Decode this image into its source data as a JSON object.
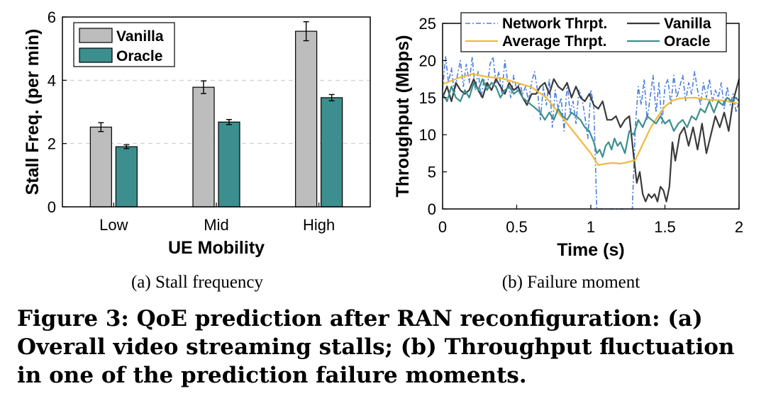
{
  "chart_data": [
    {
      "type": "bar",
      "caption": "(a)  Stall frequency",
      "xlabel": "UE Mobility",
      "ylabel": "Stall Freq. (per min)",
      "categories": [
        "Low",
        "Mid",
        "High"
      ],
      "ylim": [
        0,
        6
      ],
      "yticks": [
        0,
        2,
        4,
        6
      ],
      "grid": "dashed horizontal at 2 and 4",
      "legend_position": "top-left",
      "series": [
        {
          "name": "Vanilla",
          "color": "#bdbdbd",
          "values": [
            2.52,
            3.78,
            5.55
          ],
          "errors": [
            0.14,
            0.2,
            0.3
          ]
        },
        {
          "name": "Oracle",
          "color": "#3d8f8f",
          "values": [
            1.9,
            2.68,
            3.45
          ],
          "errors": [
            0.06,
            0.08,
            0.1
          ]
        }
      ]
    },
    {
      "type": "line",
      "caption": "(b)  Failure moment",
      "xlabel": "Time (s)",
      "ylabel": "Throughput (Mbps)",
      "xlim": [
        0,
        2
      ],
      "xticks": [
        0,
        0.5,
        1,
        1.5,
        2
      ],
      "ylim": [
        0,
        25
      ],
      "yticks": [
        0,
        5,
        10,
        15,
        20,
        25
      ],
      "legend_position": "top (2 columns)",
      "series": [
        {
          "name": "Network Thrpt.",
          "color": "#4a7de0",
          "style": "dash-dot",
          "x": [
            0,
            0.02,
            0.04,
            0.06,
            0.08,
            0.1,
            0.12,
            0.14,
            0.16,
            0.18,
            0.2,
            0.22,
            0.24,
            0.26,
            0.28,
            0.3,
            0.32,
            0.34,
            0.36,
            0.38,
            0.4,
            0.42,
            0.44,
            0.46,
            0.48,
            0.5,
            0.52,
            0.54,
            0.56,
            0.58,
            0.6,
            0.62,
            0.64,
            0.66,
            0.68,
            0.7,
            0.72,
            0.74,
            0.76,
            0.78,
            0.8,
            0.82,
            0.84,
            0.86,
            0.88,
            0.9,
            0.92,
            0.94,
            0.96,
            0.98,
            1,
            1.02,
            1.04,
            1.06,
            1.08,
            1.1,
            1.12,
            1.14,
            1.16,
            1.18,
            1.2,
            1.22,
            1.24,
            1.26,
            1.28,
            1.3,
            1.32,
            1.34,
            1.36,
            1.38,
            1.4,
            1.42,
            1.44,
            1.46,
            1.48,
            1.5,
            1.52,
            1.54,
            1.56,
            1.58,
            1.6,
            1.62,
            1.64,
            1.66,
            1.68,
            1.7,
            1.72,
            1.74,
            1.76,
            1.78,
            1.8,
            1.82,
            1.84,
            1.86,
            1.88,
            1.9,
            1.92,
            1.94,
            1.96,
            1.98,
            2
          ],
          "y": [
            16,
            20.5,
            17,
            19,
            15.5,
            18,
            20,
            16.5,
            19.5,
            17,
            20.5,
            16,
            18.5,
            15,
            17.5,
            16,
            19.5,
            20.5,
            17,
            18.5,
            15.5,
            20,
            17,
            15,
            18,
            16,
            17,
            15.5,
            16.5,
            14.5,
            17,
            18.5,
            16,
            12,
            16.5,
            14,
            17.5,
            11,
            16,
            13.5,
            15,
            10.5,
            17,
            13,
            14.5,
            11.5,
            16,
            15,
            12.5,
            9.5,
            16,
            14,
            0,
            0,
            0,
            0,
            0,
            0,
            0,
            0,
            0,
            0,
            0,
            0,
            0,
            11,
            16.5,
            14,
            17.5,
            12,
            15,
            18,
            13,
            17,
            11.5,
            16.5,
            17.5,
            14,
            18,
            15,
            16.5,
            18,
            14.5,
            17,
            15.5,
            18.5,
            16,
            14,
            17,
            15,
            17.5,
            14.5,
            16,
            15,
            17,
            13.5,
            16.5,
            14,
            15.5,
            13,
            14.5
          ]
        },
        {
          "name": "Vanilla",
          "color": "#3a3a3a",
          "style": "solid",
          "x": [
            0,
            0.03,
            0.06,
            0.09,
            0.12,
            0.15,
            0.18,
            0.21,
            0.24,
            0.27,
            0.3,
            0.33,
            0.36,
            0.39,
            0.42,
            0.45,
            0.48,
            0.51,
            0.54,
            0.57,
            0.6,
            0.63,
            0.66,
            0.69,
            0.72,
            0.75,
            0.78,
            0.81,
            0.84,
            0.87,
            0.9,
            0.93,
            0.96,
            0.99,
            1.02,
            1.05,
            1.08,
            1.11,
            1.14,
            1.17,
            1.2,
            1.23,
            1.26,
            1.29,
            1.31,
            1.33,
            1.35,
            1.37,
            1.39,
            1.41,
            1.43,
            1.45,
            1.47,
            1.49,
            1.51,
            1.53,
            1.55,
            1.57,
            1.6,
            1.63,
            1.66,
            1.69,
            1.72,
            1.75,
            1.78,
            1.81,
            1.84,
            1.87,
            1.9,
            1.93,
            1.96,
            2
          ],
          "y": [
            15,
            16.5,
            14.5,
            17,
            16,
            15.5,
            16,
            17.5,
            16,
            15,
            17,
            16,
            17.5,
            16.5,
            15.5,
            17,
            16,
            16.5,
            15,
            14,
            15.5,
            15.5,
            16.5,
            17,
            15.5,
            17.5,
            16.5,
            16,
            17,
            15,
            16.5,
            15,
            14.5,
            15.5,
            14,
            13.5,
            14.5,
            12,
            12,
            12.5,
            11,
            12,
            12.5,
            7,
            3.5,
            5,
            2,
            1,
            2,
            1.5,
            2,
            1,
            3,
            2.5,
            1,
            3,
            9,
            6.5,
            10,
            11,
            8.5,
            11,
            8,
            11.5,
            7.5,
            10,
            12.5,
            11,
            13,
            10.5,
            14.5,
            17.5
          ]
        },
        {
          "name": "Average Thrpt.",
          "color": "#f0b93a",
          "style": "solid",
          "x": [
            0,
            0.1,
            0.2,
            0.3,
            0.4,
            0.5,
            0.6,
            0.7,
            0.8,
            0.9,
            1,
            1.05,
            1.1,
            1.15,
            1.2,
            1.25,
            1.3,
            1.35,
            1.4,
            1.45,
            1.5,
            1.55,
            1.6,
            1.7,
            1.8,
            1.9,
            2
          ],
          "y": [
            16.8,
            17.6,
            18.2,
            17.8,
            17.6,
            17,
            16.4,
            15,
            12.5,
            10,
            7.5,
            5.9,
            6.1,
            6.2,
            6.1,
            6.3,
            6.6,
            8.7,
            10.8,
            12.4,
            13.8,
            14.6,
            14.9,
            15,
            14.7,
            14.6,
            14.2
          ]
        },
        {
          "name": "Oracle",
          "color": "#3d8f8f",
          "style": "solid",
          "x": [
            0,
            0.03,
            0.06,
            0.09,
            0.12,
            0.15,
            0.18,
            0.21,
            0.24,
            0.27,
            0.3,
            0.33,
            0.36,
            0.39,
            0.42,
            0.45,
            0.48,
            0.51,
            0.54,
            0.57,
            0.6,
            0.63,
            0.66,
            0.69,
            0.72,
            0.75,
            0.78,
            0.81,
            0.84,
            0.87,
            0.9,
            0.93,
            0.96,
            0.99,
            1.02,
            1.04,
            1.06,
            1.08,
            1.1,
            1.12,
            1.14,
            1.16,
            1.18,
            1.2,
            1.23,
            1.26,
            1.29,
            1.32,
            1.35,
            1.38,
            1.41,
            1.44,
            1.47,
            1.5,
            1.53,
            1.56,
            1.59,
            1.62,
            1.65,
            1.68,
            1.71,
            1.74,
            1.77,
            1.8,
            1.83,
            1.86,
            1.89,
            1.92,
            1.95,
            1.98,
            2
          ],
          "y": [
            15.5,
            14.5,
            16.5,
            15,
            14.5,
            16,
            15,
            17,
            16,
            17.5,
            16,
            17,
            16.5,
            15,
            16,
            16.5,
            15.5,
            16,
            15,
            14.5,
            14,
            13.5,
            13,
            12,
            13,
            12,
            13.5,
            12.5,
            12,
            13,
            12.5,
            12,
            11,
            10.5,
            9,
            7.5,
            8,
            7,
            8.5,
            9,
            8,
            9.5,
            8.5,
            9,
            7.5,
            10.5,
            10,
            12,
            11,
            12.5,
            12,
            11.5,
            12.5,
            11.5,
            12,
            10.5,
            11.5,
            12,
            11,
            12.5,
            12,
            13.5,
            13,
            14.5,
            13,
            14.5,
            14,
            15,
            14.5,
            15,
            14.5
          ]
        }
      ]
    }
  ],
  "figure": {
    "caption": "Figure 3: QoE prediction after RAN reconfiguration: (a) Overall video streaming stalls; (b) Throughput fluctuation in one of the prediction failure moments."
  }
}
